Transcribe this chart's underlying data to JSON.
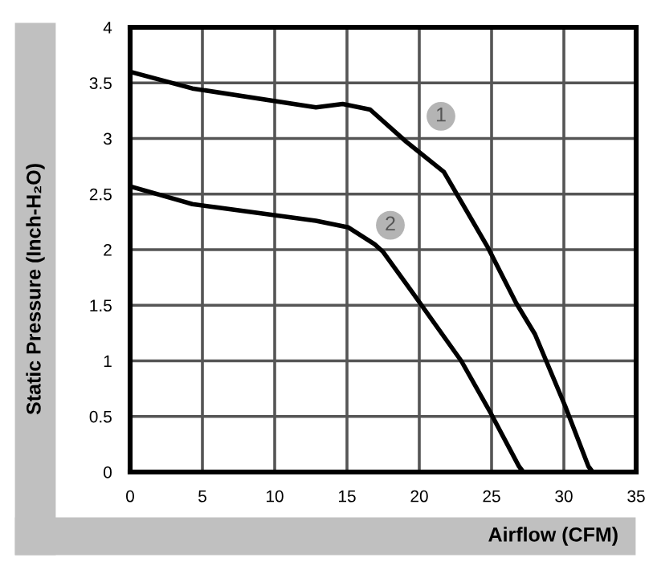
{
  "chart_data": {
    "type": "line",
    "xlabel": "Airflow (CFM)",
    "ylabel": "Static Pressure (Inch-H₂O)",
    "series": [
      {
        "color": "#000000",
        "x": [
          0,
          4.3,
          12.85,
          14.7,
          16.6,
          19.1,
          21.7,
          24.7,
          26.7,
          28.0,
          30.1,
          31.7,
          32.0
        ],
        "values": [
          3.6,
          3.45,
          3.28,
          3.31,
          3.26,
          2.97,
          2.7,
          2.03,
          1.52,
          1.24,
          0.59,
          0.05,
          0
        ]
      },
      {
        "color": "#000000",
        "x": [
          0,
          4.3,
          12.85,
          15.1,
          16.9,
          17.5,
          19.5,
          22.9,
          24.9,
          26.9,
          27.2
        ],
        "values": [
          2.57,
          2.41,
          2.26,
          2.2,
          2.05,
          1.98,
          1.62,
          1.0,
          0.54,
          0.05,
          0
        ]
      }
    ],
    "annotations": [
      {
        "text": "1",
        "x": 21.5,
        "y": 3.2
      },
      {
        "text": "2",
        "x": 18.0,
        "y": 2.22
      }
    ],
    "xlim": [
      0,
      35
    ],
    "xticks": [
      0,
      5,
      10,
      15,
      20,
      25,
      30,
      35
    ],
    "ylim": [
      0,
      4
    ],
    "yticks": [
      0,
      0.5,
      1,
      1.5,
      2,
      2.5,
      3,
      3.5,
      4
    ],
    "grid": true,
    "marker": "none",
    "line_style": "solid",
    "legend": false
  }
}
